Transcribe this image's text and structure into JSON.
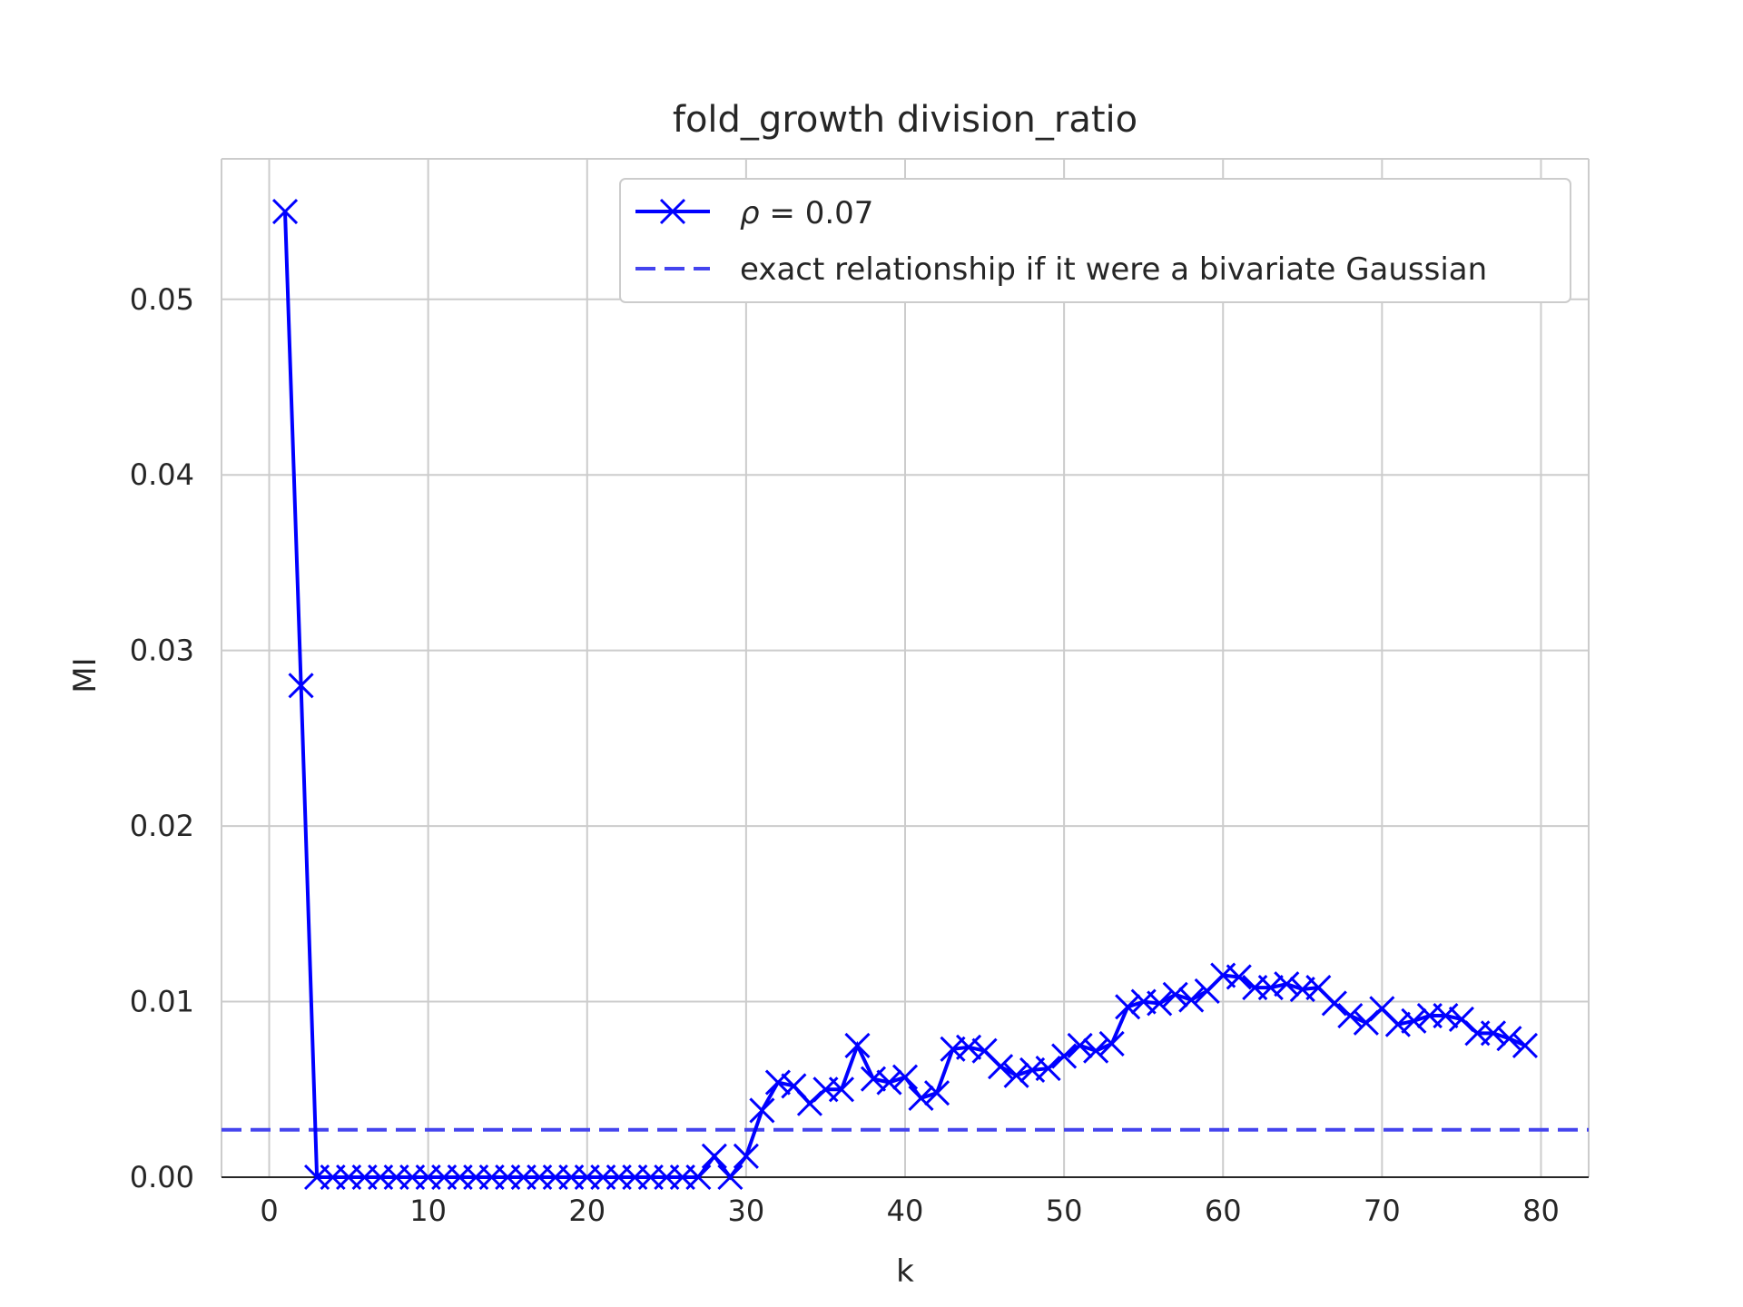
{
  "chart_data": {
    "type": "line",
    "title": "fold_growth division_ratio",
    "xlabel": "k",
    "ylabel": "MI",
    "xlim": [
      -3,
      83
    ],
    "ylim": [
      0,
      0.058
    ],
    "xticks": [
      0,
      10,
      20,
      30,
      40,
      50,
      60,
      70,
      80
    ],
    "yticks": [
      0.0,
      0.01,
      0.02,
      0.03,
      0.04,
      0.05
    ],
    "xtick_labels": [
      "0",
      "10",
      "20",
      "30",
      "40",
      "50",
      "60",
      "70",
      "80"
    ],
    "ytick_labels": [
      "0.00",
      "0.01",
      "0.02",
      "0.03",
      "0.04",
      "0.05"
    ],
    "grid": true,
    "legend_position": "top-right",
    "series": [
      {
        "name": "ρ = 0.07",
        "legend_name_italic": "ρ",
        "legend_name_rest": " = 0.07",
        "color": "#0000ff",
        "marker": "x",
        "line": "solid",
        "x": [
          1,
          2,
          3,
          4,
          5,
          6,
          7,
          8,
          9,
          10,
          11,
          12,
          13,
          14,
          15,
          16,
          17,
          18,
          19,
          20,
          21,
          22,
          23,
          24,
          25,
          26,
          27,
          28,
          29,
          30,
          31,
          32,
          33,
          34,
          35,
          36,
          37,
          38,
          39,
          40,
          41,
          42,
          43,
          44,
          45,
          46,
          47,
          48,
          49,
          50,
          51,
          52,
          53,
          54,
          55,
          56,
          57,
          58,
          59,
          60,
          61,
          62,
          63,
          64,
          65,
          66,
          67,
          68,
          69,
          70,
          71,
          72,
          73,
          74,
          75,
          76,
          77,
          78,
          79
        ],
        "y": [
          0.055,
          0.028,
          0,
          0,
          0,
          0,
          0,
          0,
          0,
          0,
          0,
          0,
          0,
          0,
          0,
          0,
          0,
          0,
          0,
          0,
          0,
          0,
          0,
          0,
          0,
          0,
          0,
          0.0012,
          0,
          0.0012,
          0.0038,
          0.0054,
          0.0052,
          0.0042,
          0.005,
          0.005,
          0.0075,
          0.0056,
          0.0054,
          0.0057,
          0.0045,
          0.0048,
          0.0073,
          0.0074,
          0.0072,
          0.0063,
          0.0058,
          0.0061,
          0.0062,
          0.0069,
          0.0075,
          0.0072,
          0.0076,
          0.0097,
          0.01,
          0.0099,
          0.0104,
          0.0101,
          0.0106,
          0.0115,
          0.0114,
          0.0108,
          0.0108,
          0.011,
          0.0107,
          0.0108,
          0.0099,
          0.0092,
          0.0088,
          0.0096,
          0.0087,
          0.0089,
          0.0092,
          0.0092,
          0.009,
          0.0082,
          0.0082,
          0.0079,
          0.0075
        ]
      },
      {
        "name": "exact relationship if it were a bivariate Gaussian",
        "color": "#4444ee",
        "line": "dashed",
        "y_constant": 0.0027
      }
    ]
  }
}
